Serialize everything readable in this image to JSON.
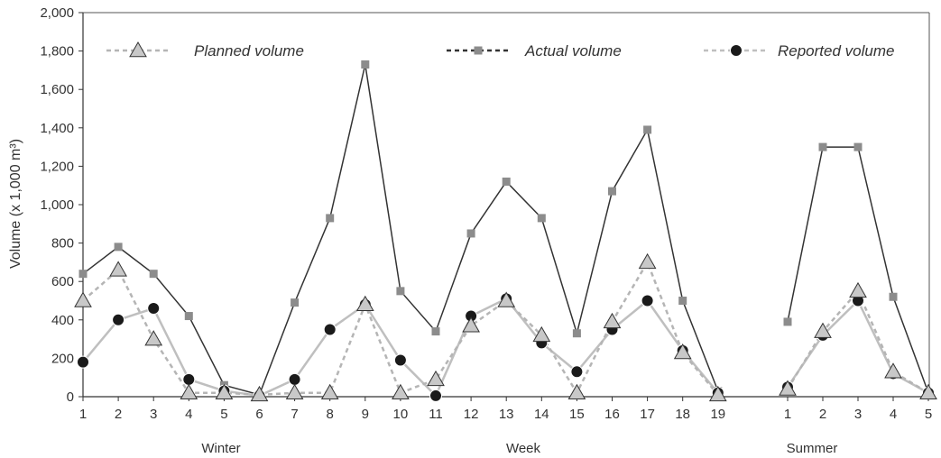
{
  "chart_data": {
    "type": "line",
    "ylabel": "Volume (x 1,000 m³)",
    "ylim": [
      0,
      2000
    ],
    "yticks": [
      "0",
      "200",
      "400",
      "600",
      "800",
      "1,000",
      "1,200",
      "1,400",
      "1,600",
      "1,800",
      "2,000"
    ],
    "ytick_values": [
      0,
      200,
      400,
      600,
      800,
      1000,
      1200,
      1400,
      1600,
      1800,
      2000
    ],
    "grid": false,
    "legend_position": "top",
    "groups": [
      {
        "label": "Winter",
        "x": [
          "1",
          "2",
          "3",
          "4",
          "5",
          "6",
          "7",
          "8",
          "9",
          "10"
        ]
      },
      {
        "label": "Week",
        "x": [
          "11",
          "12",
          "13",
          "14",
          "15",
          "16",
          "17",
          "18",
          "19"
        ]
      },
      {
        "label": "Summer",
        "x": [
          "1",
          "2",
          "3",
          "4",
          "5"
        ]
      }
    ],
    "series": [
      {
        "name": "Planned volume",
        "style": "dashed",
        "marker": "triangle",
        "line_color": "#b5b5b5",
        "marker_color": "#c8c8c8",
        "segments": [
          [
            500,
            660,
            300,
            20,
            20,
            10,
            20,
            20,
            480,
            20,
            90,
            370,
            500,
            320,
            20,
            390,
            700,
            230,
            10
          ],
          [
            40,
            340,
            550,
            130,
            20
          ]
        ]
      },
      {
        "name": "Actual volume",
        "style": "solid",
        "marker": "square",
        "line_color": "#333333",
        "marker_color": "#8c8c8c",
        "segments": [
          [
            640,
            780,
            640,
            420,
            60,
            10,
            490,
            930,
            1730,
            550,
            340,
            850,
            1120,
            930,
            330,
            1070,
            1390,
            500,
            30
          ],
          [
            390,
            1300,
            1300,
            520,
            20
          ]
        ]
      },
      {
        "name": "Reported volume",
        "style": "solid-light",
        "marker": "circle",
        "line_color": "#bfbfbf",
        "marker_color": "#1a1a1a",
        "segments": [
          [
            180,
            400,
            460,
            90,
            30,
            5,
            90,
            350,
            480,
            190,
            5,
            420,
            510,
            280,
            130,
            350,
            500,
            240,
            20
          ],
          [
            50,
            320,
            500,
            120,
            20
          ]
        ]
      }
    ]
  }
}
